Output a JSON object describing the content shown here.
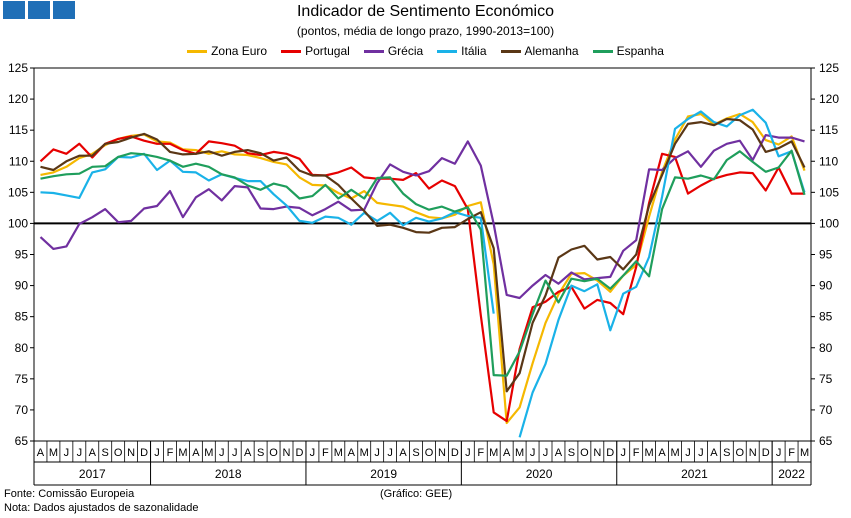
{
  "header": {
    "title": "Indicador de Sentimento Económico",
    "subtitle": "(pontos, média de longo prazo, 1990-2013=100)"
  },
  "footer": {
    "source": "Fonte: Comissão Europeia",
    "note": "Nota: Dados ajustados de sazonalidade",
    "credit": "(Gráfico: GEE)"
  },
  "chart_data": {
    "type": "line",
    "title": "Indicador de Sentimento Económico",
    "subtitle": "(pontos, média de longo prazo, 1990-2013=100)",
    "ylim": [
      65,
      125
    ],
    "yticks": [
      65,
      70,
      75,
      80,
      85,
      90,
      95,
      100,
      105,
      110,
      115,
      120,
      125
    ],
    "reference_line": 100,
    "legend_position": "top",
    "grid": false,
    "x": [
      "A",
      "M",
      "J",
      "J",
      "A",
      "S",
      "O",
      "N",
      "D",
      "J",
      "F",
      "M",
      "A",
      "M",
      "J",
      "J",
      "A",
      "S",
      "O",
      "N",
      "D",
      "J",
      "F",
      "M",
      "A",
      "M",
      "J",
      "J",
      "A",
      "S",
      "O",
      "N",
      "D",
      "J",
      "F",
      "M",
      "A",
      "M",
      "J",
      "J",
      "A",
      "S",
      "O",
      "N",
      "D",
      "J",
      "F",
      "M",
      "A",
      "M",
      "J",
      "J",
      "A",
      "S",
      "O",
      "N",
      "D",
      "J",
      "F",
      "M"
    ],
    "year_labels": [
      {
        "label": "2017",
        "start": 0,
        "end": 8
      },
      {
        "label": "2018",
        "start": 9,
        "end": 20
      },
      {
        "label": "2019",
        "start": 21,
        "end": 32
      },
      {
        "label": "2020",
        "start": 33,
        "end": 44
      },
      {
        "label": "2021",
        "start": 45,
        "end": 56
      },
      {
        "label": "2022",
        "start": 57,
        "end": 59
      }
    ],
    "series": [
      {
        "name": "Zona Euro",
        "color": "#f5b800",
        "values": [
          107.8,
          108.2,
          109.1,
          110.5,
          111.2,
          112.6,
          113.6,
          114.1,
          114.3,
          113.2,
          113.0,
          111.9,
          111.8,
          111.2,
          111.6,
          111.1,
          111.0,
          110.5,
          109.9,
          109.5,
          107.4,
          106.2,
          106.1,
          104.9,
          104.0,
          105.2,
          103.3,
          103.0,
          102.7,
          101.8,
          101.0,
          100.8,
          101.4,
          102.8,
          103.4,
          93.4,
          67.9,
          70.4,
          77.5,
          84.0,
          88.6,
          91.9,
          92.0,
          90.8,
          89.0,
          91.6,
          93.3,
          101.1,
          108.3,
          113.5,
          117.2,
          117.6,
          115.9,
          116.9,
          117.6,
          116.3,
          113.4,
          112.7,
          114.0,
          108.5
        ]
      },
      {
        "name": "Portugal",
        "color": "#e60000",
        "values": [
          110.0,
          111.9,
          111.2,
          112.8,
          110.6,
          112.8,
          113.6,
          114.0,
          113.3,
          112.8,
          112.8,
          111.8,
          111.2,
          113.2,
          112.9,
          112.5,
          111.3,
          111.0,
          111.5,
          111.2,
          110.4,
          107.8,
          107.7,
          108.2,
          109.0,
          107.4,
          107.2,
          107.2,
          107.0,
          108.1,
          105.6,
          106.9,
          106.0,
          102.3,
          85.2,
          69.6,
          68.2,
          79.8,
          86.5,
          87.4,
          89.0,
          89.8,
          86.3,
          87.7,
          87.2,
          85.4,
          93.0,
          103.3,
          111.2,
          110.7,
          104.8,
          106.1,
          107.2,
          107.8,
          108.2,
          108.1,
          105.3,
          109.0,
          104.8,
          104.8
        ]
      },
      {
        "name": "Grécia",
        "color": "#7030a0",
        "values": [
          97.8,
          95.9,
          96.3,
          99.9,
          101.0,
          102.3,
          100.2,
          100.4,
          102.4,
          102.8,
          105.2,
          101.0,
          104.2,
          105.5,
          103.7,
          106.0,
          105.8,
          102.4,
          102.3,
          102.7,
          102.5,
          101.3,
          102.3,
          103.5,
          102.1,
          102.2,
          106.5,
          109.5,
          108.3,
          107.7,
          108.4,
          110.5,
          109.6,
          113.2,
          109.3,
          99.9,
          88.5,
          88.0,
          90.0,
          91.7,
          90.3,
          92.1,
          91.0,
          91.2,
          91.4,
          95.6,
          97.3,
          108.7,
          108.6,
          110.5,
          111.6,
          109.1,
          111.7,
          112.8,
          113.3,
          110.2,
          114.2,
          113.8,
          113.8,
          113.2
        ]
      },
      {
        "name": "Itália",
        "color": "#1ab2e8",
        "values": [
          105.0,
          104.9,
          104.5,
          104.1,
          108.2,
          108.7,
          110.7,
          110.6,
          111.2,
          108.6,
          110.1,
          108.3,
          108.2,
          106.9,
          107.9,
          107.3,
          106.8,
          106.8,
          104.7,
          102.9,
          100.4,
          100.1,
          101.1,
          100.9,
          99.8,
          101.7,
          100.4,
          101.7,
          99.7,
          100.9,
          100.3,
          100.8,
          101.8,
          101.2,
          100.9,
          85.5,
          null,
          65.6,
          72.8,
          77.4,
          84.5,
          90.0,
          89.1,
          90.2,
          82.8,
          88.7,
          89.8,
          94.6,
          104.3,
          115.2,
          116.8,
          118.0,
          116.3,
          115.6,
          117.4,
          118.3,
          116.2,
          110.8,
          111.6,
          105.0
        ]
      },
      {
        "name": "Alemanha",
        "color": "#5a3716",
        "values": [
          109.1,
          108.6,
          110.0,
          110.9,
          110.9,
          112.8,
          113.1,
          113.8,
          114.4,
          113.5,
          111.5,
          111.1,
          111.2,
          111.6,
          110.9,
          111.5,
          111.8,
          111.3,
          110.1,
          110.6,
          108.5,
          107.7,
          107.7,
          106.2,
          104.0,
          102.0,
          99.6,
          99.8,
          99.3,
          98.6,
          98.5,
          99.3,
          99.4,
          100.7,
          101.8,
          96.0,
          73.0,
          75.9,
          84.0,
          88.4,
          94.5,
          95.8,
          96.4,
          94.2,
          94.6,
          92.6,
          95.0,
          102.9,
          107.8,
          112.8,
          116.0,
          116.3,
          115.8,
          116.8,
          116.6,
          115.1,
          111.5,
          112.1,
          113.2,
          109.0
        ]
      },
      {
        "name": "Espanha",
        "color": "#1f9e5c",
        "values": [
          107.2,
          107.6,
          107.9,
          108.0,
          109.1,
          109.2,
          110.7,
          111.3,
          111.1,
          110.7,
          110.1,
          109.1,
          109.6,
          109.1,
          107.9,
          107.4,
          106.1,
          105.4,
          106.4,
          105.9,
          104.0,
          104.4,
          106.2,
          104.0,
          105.4,
          104.0,
          107.3,
          107.4,
          104.8,
          103.1,
          102.2,
          102.7,
          101.9,
          102.6,
          99.0,
          75.6,
          75.5,
          79.4,
          85.4,
          90.8,
          87.3,
          91.1,
          90.7,
          91.1,
          89.5,
          91.6,
          93.9,
          91.5,
          102.3,
          107.4,
          107.2,
          107.7,
          107.1,
          110.2,
          111.6,
          109.9,
          108.3,
          109.0,
          111.7,
          104.6
        ]
      }
    ]
  }
}
